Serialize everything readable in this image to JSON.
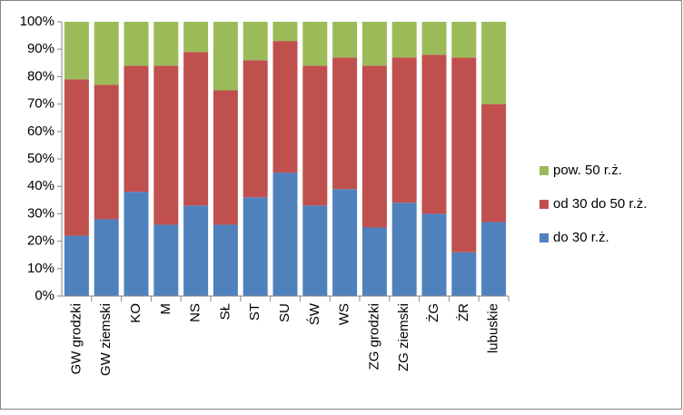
{
  "chart_data": {
    "type": "stacked_bar",
    "categories": [
      "GW grodzki",
      "GW ziemski",
      "KO",
      "M",
      "NS",
      "SŁ",
      "ST",
      "SU",
      "ŚW",
      "WS",
      "ZG grodzki",
      "ZG ziemski",
      "ŻG",
      "ŻR",
      "lubuskie"
    ],
    "series": [
      {
        "name": "do 30 r.ż.",
        "color": "#4f81bd",
        "values": [
          22,
          28,
          38,
          26,
          33,
          26,
          36,
          45,
          33,
          39,
          25,
          34,
          30,
          16,
          27
        ]
      },
      {
        "name": "od 30 do 50 r.ż.",
        "color": "#c0504d",
        "values": [
          57,
          49,
          46,
          58,
          56,
          49,
          50,
          48,
          51,
          48,
          59,
          53,
          58,
          71,
          43
        ]
      },
      {
        "name": "pow. 50 r.ż.",
        "color": "#9bbb59",
        "values": [
          21,
          23,
          16,
          16,
          11,
          25,
          14,
          7,
          16,
          13,
          16,
          13,
          12,
          13,
          30
        ]
      }
    ],
    "ylim": [
      0,
      100
    ],
    "yticks": [
      {
        "value": 0,
        "label": "0%"
      },
      {
        "value": 10,
        "label": "10%"
      },
      {
        "value": 20,
        "label": "20%"
      },
      {
        "value": 30,
        "label": "30%"
      },
      {
        "value": 40,
        "label": "40%"
      },
      {
        "value": 50,
        "label": "50%"
      },
      {
        "value": 60,
        "label": "60%"
      },
      {
        "value": 70,
        "label": "70%"
      },
      {
        "value": 80,
        "label": "80%"
      },
      {
        "value": 90,
        "label": "90%"
      },
      {
        "value": 100,
        "label": "100%"
      }
    ],
    "legend": "right"
  }
}
